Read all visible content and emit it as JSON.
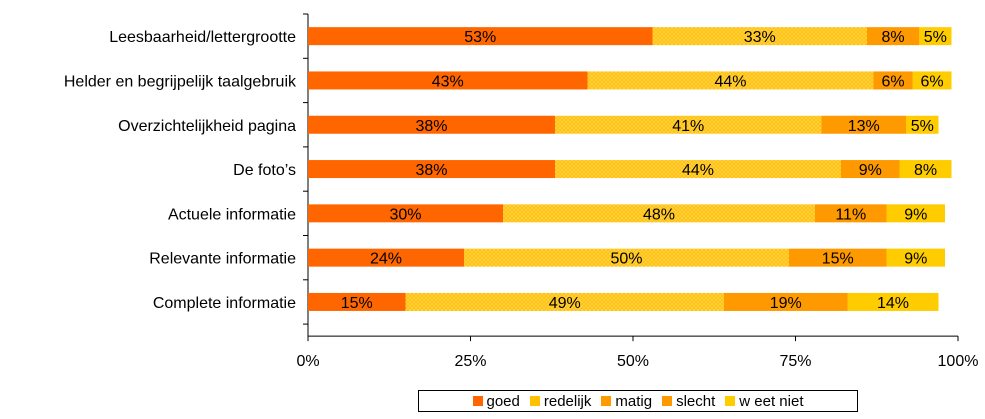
{
  "chart_data": {
    "type": "bar",
    "orientation": "horizontal",
    "stacked": true,
    "categories": [
      "Leesbaarheid/lettergrootte",
      "Helder en begrijpelijk taalgebruik",
      "Overzichtelijkheid pagina",
      "De foto’s",
      "Actuele informatie",
      "Relevante informatie",
      "Complete informatie"
    ],
    "series": [
      {
        "name": "goed",
        "color": "#FF6600",
        "values": [
          53,
          43,
          38,
          38,
          30,
          24,
          15
        ]
      },
      {
        "name": "redelijk",
        "color": "#FFC000",
        "values": [
          33,
          44,
          41,
          44,
          48,
          50,
          49
        ]
      },
      {
        "name": "matig",
        "color": "#FF9900",
        "values": [
          0,
          0,
          0,
          0,
          0,
          0,
          19
        ]
      },
      {
        "name": "slecht",
        "color": "#FF9900",
        "values": [
          8,
          6,
          13,
          9,
          11,
          15,
          0
        ]
      },
      {
        "name": "w eet niet",
        "color": "#FFCC00",
        "values": [
          5,
          6,
          5,
          8,
          9,
          9,
          14
        ]
      }
    ],
    "x_ticks": [
      "0%",
      "25%",
      "50%",
      "75%",
      "100%"
    ],
    "xlim": [
      0,
      100
    ],
    "legend_position": "bottom"
  }
}
